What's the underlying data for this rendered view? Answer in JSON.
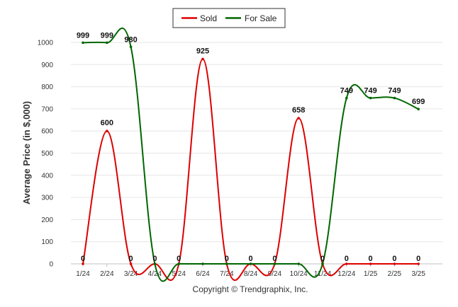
{
  "chart_data": {
    "type": "line",
    "ylabel": "Average Price (in $,000)",
    "xlabel": "",
    "credit": "Copyright © Trendgraphix, Inc.",
    "categories": [
      "1/24",
      "2/24",
      "3/24",
      "4/24",
      "5/24",
      "6/24",
      "7/24",
      "8/24",
      "9/24",
      "10/24",
      "11/24",
      "12/24",
      "1/25",
      "2/25",
      "3/25"
    ],
    "ylim": [
      0,
      1000
    ],
    "yticks": [
      0,
      100,
      200,
      300,
      400,
      500,
      600,
      700,
      800,
      900,
      1000
    ],
    "grid": true,
    "legend_placement": "top-center",
    "series": [
      {
        "name": "Sold",
        "color": "#dd0000",
        "values": [
          0,
          600,
          0,
          0,
          0,
          925,
          0,
          0,
          0,
          658,
          0,
          0,
          0,
          0,
          0
        ]
      },
      {
        "name": "For Sale",
        "color": "#006600",
        "values": [
          999,
          999,
          980,
          0,
          0,
          0,
          0,
          0,
          0,
          0,
          0,
          749,
          749,
          749,
          699
        ]
      }
    ],
    "data_labels": [
      "0",
      "600",
      "0",
      "0",
      "0",
      "925",
      "0",
      "0",
      "0",
      "658",
      "0",
      "0",
      "0",
      "0",
      "0"
    ],
    "for_sale_labels": [
      "999",
      "999",
      "980",
      "",
      "",
      "",
      "",
      "",
      "",
      "",
      "",
      "749",
      "749",
      "749",
      "699"
    ]
  }
}
